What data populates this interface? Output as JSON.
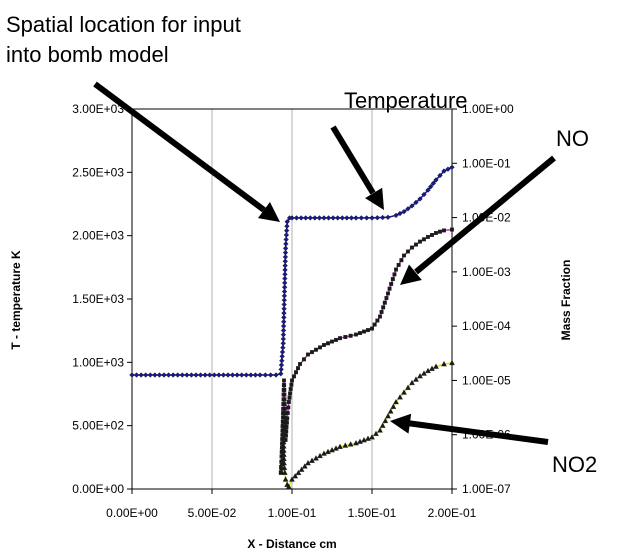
{
  "chart_data": {
    "type": "line",
    "title": "",
    "xlabel": "X - Distance cm",
    "ylabel_left": "T - temperature K",
    "ylabel_right": "Mass Fraction",
    "xlim": [
      0,
      0.2
    ],
    "ylim_left": [
      0,
      3000
    ],
    "ylim_right": [
      1e-07,
      1
    ],
    "right_axis_scale": "log",
    "grid": "vertical",
    "x_ticks": [
      "0.00E+00",
      "5.00E-02",
      "1.00E-01",
      "1.50E-01",
      "2.00E-01"
    ],
    "y_left_ticks": [
      "0.00E+00",
      "5.00E+02",
      "1.00E+03",
      "1.50E+03",
      "2.00E+03",
      "2.50E+03",
      "3.00E+03"
    ],
    "y_right_ticks": [
      "1.00E-07",
      "1.00E-06",
      "1.00E-05",
      "1.00E-04",
      "1.00E-03",
      "1.00E-02",
      "1.00E-01",
      "1.00E+00"
    ],
    "series": [
      {
        "axis": "left",
        "color": "#1a1a8c",
        "marker": "diamond",
        "x": [
          0,
          0.02,
          0.04,
          0.06,
          0.08,
          0.09,
          0.093,
          0.0945,
          0.096,
          0.097,
          0.0985,
          0.1,
          0.12,
          0.14,
          0.15,
          0.16,
          0.165,
          0.17,
          0.175,
          0.18,
          0.185,
          0.19,
          0.195,
          0.2
        ],
        "values": [
          900,
          900,
          900,
          900,
          900,
          900,
          910,
          1150,
          1900,
          2110,
          2140,
          2140,
          2140,
          2140,
          2140,
          2145,
          2160,
          2190,
          2235,
          2290,
          2360,
          2440,
          2510,
          2540
        ]
      },
      {
        "axis": "right",
        "color": "#cc33cc",
        "marker": "square",
        "x": [
          0.093,
          0.0935,
          0.094,
          0.0945,
          0.095,
          0.0955,
          0.096,
          0.097,
          0.098,
          0.1,
          0.105,
          0.11,
          0.12,
          0.13,
          0.14,
          0.15,
          0.155,
          0.16,
          0.165,
          0.17,
          0.175,
          0.18,
          0.185,
          0.19,
          0.195,
          0.2
        ],
        "values": [
          2e-07,
          4e-07,
          1e-06,
          3e-06,
          1e-05,
          3e-06,
          8e-07,
          2e-06,
          4e-06,
          1e-05,
          2e-05,
          3e-05,
          4.5e-05,
          6e-05,
          7e-05,
          9e-05,
          0.00015,
          0.0004,
          0.0011,
          0.002,
          0.0028,
          0.0036,
          0.0044,
          0.0052,
          0.0058,
          0.006
        ]
      },
      {
        "axis": "right",
        "color": "#e8e800",
        "marker": "triangle",
        "x": [
          0.0935,
          0.094,
          0.0945,
          0.095,
          0.0955,
          0.096,
          0.097,
          0.098,
          0.1,
          0.11,
          0.12,
          0.13,
          0.14,
          0.15,
          0.155,
          0.16,
          0.165,
          0.17,
          0.175,
          0.18,
          0.185,
          0.19,
          0.195,
          0.2
        ],
        "values": [
          2e-07,
          5e-07,
          1.5e-06,
          3e-07,
          2e-07,
          1.5e-07,
          1.2e-07,
          1.1e-07,
          1.5e-07,
          3e-07,
          4.5e-07,
          6e-07,
          7e-07,
          9e-07,
          1.2e-06,
          2.2e-06,
          4e-06,
          6e-06,
          9e-06,
          1.2e-05,
          1.5e-05,
          1.8e-05,
          2e-05,
          2.1e-05
        ]
      }
    ],
    "annotations": [
      "Spatial location for input",
      "into bomb model",
      "Temperature",
      "NO",
      "NO2"
    ]
  }
}
